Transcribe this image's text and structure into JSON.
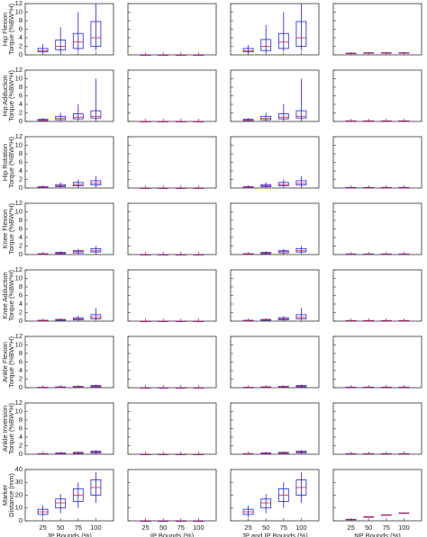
{
  "chart_data": {
    "type": "box",
    "box_color": "#2020e0",
    "median_color": "#e02020",
    "columns": [
      {
        "x_label": "JP Bounds (%)",
        "categories": [
          "25",
          "50",
          "75",
          "100"
        ]
      },
      {
        "x_label": "IP Bounds (%)",
        "categories": [
          "25",
          "50",
          "75",
          "100"
        ]
      },
      {
        "x_label": "JP and IP Bounds (%)",
        "categories": [
          "25",
          "50",
          "75",
          "100"
        ]
      },
      {
        "x_label": "NP Bounds (%)",
        "categories": [
          "25",
          "50",
          "75",
          "100"
        ]
      }
    ],
    "rows": [
      {
        "y_label": [
          "Hip Flexion",
          "Torque (%BW*H)"
        ],
        "ylim": [
          0,
          12
        ],
        "yticks": [
          0,
          2,
          4,
          6,
          8,
          10,
          12
        ],
        "boxes": [
          [
            [
              0.3,
              0.7,
              1,
              1.5,
              2.5
            ],
            [
              0.5,
              1.2,
              2,
              3.5,
              6.5
            ],
            [
              0.8,
              1.5,
              3,
              5,
              10
            ],
            [
              1,
              2,
              4,
              7.8,
              12
            ]
          ],
          [
            [
              0,
              0,
              0.01,
              0.02,
              0.05
            ],
            [
              0,
              0,
              0.01,
              0.02,
              0.05
            ],
            [
              0,
              0,
              0.01,
              0.02,
              0.05
            ],
            [
              0,
              0,
              0.01,
              0.02,
              0.05
            ]
          ],
          [
            [
              0.3,
              0.7,
              1,
              1.5,
              2.3
            ],
            [
              0.5,
              1,
              2,
              3.6,
              7
            ],
            [
              0.8,
              1.5,
              3,
              5,
              10
            ],
            [
              1,
              2,
              4,
              7.8,
              12
            ]
          ],
          [
            [
              0.2,
              0.3,
              0.35,
              0.4,
              0.5
            ],
            [
              0.3,
              0.4,
              0.45,
              0.5,
              0.6
            ],
            [
              0.3,
              0.4,
              0.45,
              0.5,
              0.6
            ],
            [
              0.3,
              0.4,
              0.45,
              0.5,
              0.6
            ]
          ]
        ]
      },
      {
        "y_label": [
          "Hip Adduction",
          "Torque (%BW*H)"
        ],
        "ylim": [
          0,
          12
        ],
        "yticks": [
          0,
          2,
          4,
          6,
          8,
          10,
          12
        ],
        "boxes": [
          [
            [
              0.1,
              0.2,
              0.3,
              0.5,
              0.8
            ],
            [
              0.2,
              0.4,
              0.7,
              1.2,
              2
            ],
            [
              0.3,
              0.6,
              1,
              1.8,
              4
            ],
            [
              0.3,
              0.8,
              1.2,
              2.5,
              10
            ]
          ],
          [
            [
              0,
              0,
              0.01,
              0.02,
              0.05
            ],
            [
              0,
              0,
              0.01,
              0.02,
              0.05
            ],
            [
              0,
              0,
              0.01,
              0.02,
              0.05
            ],
            [
              0,
              0,
              0.01,
              0.02,
              0.05
            ]
          ],
          [
            [
              0.1,
              0.2,
              0.3,
              0.5,
              0.8
            ],
            [
              0.2,
              0.4,
              0.7,
              1.2,
              2
            ],
            [
              0.3,
              0.6,
              1,
              1.8,
              4
            ],
            [
              0.3,
              0.8,
              1.2,
              2.5,
              10
            ]
          ],
          [
            [
              0.05,
              0.1,
              0.12,
              0.15,
              0.2
            ],
            [
              0.05,
              0.1,
              0.12,
              0.15,
              0.2
            ],
            [
              0.05,
              0.1,
              0.12,
              0.15,
              0.2
            ],
            [
              0.05,
              0.1,
              0.12,
              0.15,
              0.2
            ]
          ]
        ]
      },
      {
        "y_label": [
          "Hip Rotation",
          "Torque (%BW*H)"
        ],
        "ylim": [
          0,
          12
        ],
        "yticks": [
          0,
          2,
          4,
          6,
          8,
          10,
          12
        ],
        "boxes": [
          [
            [
              0.05,
              0.1,
              0.2,
              0.3,
              0.5
            ],
            [
              0.1,
              0.3,
              0.5,
              0.8,
              1.3
            ],
            [
              0.2,
              0.5,
              0.8,
              1.3,
              2
            ],
            [
              0.3,
              0.7,
              1.1,
              1.7,
              2.8
            ]
          ],
          [
            [
              0,
              0,
              0.01,
              0.02,
              0.05
            ],
            [
              0,
              0,
              0.01,
              0.02,
              0.05
            ],
            [
              0,
              0,
              0.01,
              0.02,
              0.05
            ],
            [
              0,
              0,
              0.01,
              0.02,
              0.05
            ]
          ],
          [
            [
              0.05,
              0.1,
              0.2,
              0.3,
              0.5
            ],
            [
              0.1,
              0.3,
              0.5,
              0.8,
              1.3
            ],
            [
              0.2,
              0.5,
              0.8,
              1.3,
              2
            ],
            [
              0.3,
              0.7,
              1.1,
              1.7,
              2.8
            ]
          ],
          [
            [
              0.05,
              0.1,
              0.12,
              0.15,
              0.2
            ],
            [
              0.05,
              0.1,
              0.12,
              0.15,
              0.2
            ],
            [
              0.05,
              0.1,
              0.12,
              0.15,
              0.2
            ],
            [
              0.05,
              0.1,
              0.12,
              0.15,
              0.2
            ]
          ]
        ]
      },
      {
        "y_label": [
          "Knee Flexion",
          "Torque (%BW*H)"
        ],
        "ylim": [
          0,
          12
        ],
        "yticks": [
          0,
          2,
          4,
          6,
          8,
          10,
          12
        ],
        "boxes": [
          [
            [
              0.05,
              0.1,
              0.15,
              0.2,
              0.3
            ],
            [
              0.1,
              0.2,
              0.35,
              0.5,
              0.8
            ],
            [
              0.2,
              0.4,
              0.7,
              0.9,
              1.3
            ],
            [
              0.3,
              0.6,
              0.9,
              1.4,
              2
            ]
          ],
          [
            [
              0,
              0,
              0.01,
              0.02,
              0.05
            ],
            [
              0,
              0,
              0.01,
              0.02,
              0.05
            ],
            [
              0,
              0,
              0.01,
              0.02,
              0.05
            ],
            [
              0,
              0,
              0.01,
              0.02,
              0.05
            ]
          ],
          [
            [
              0.05,
              0.1,
              0.15,
              0.2,
              0.3
            ],
            [
              0.1,
              0.2,
              0.35,
              0.5,
              0.8
            ],
            [
              0.2,
              0.4,
              0.7,
              0.9,
              1.3
            ],
            [
              0.3,
              0.6,
              0.9,
              1.4,
              2
            ]
          ],
          [
            [
              0.05,
              0.1,
              0.12,
              0.15,
              0.2
            ],
            [
              0.05,
              0.1,
              0.12,
              0.15,
              0.2
            ],
            [
              0.05,
              0.1,
              0.12,
              0.15,
              0.2
            ],
            [
              0.05,
              0.1,
              0.12,
              0.15,
              0.2
            ]
          ]
        ]
      },
      {
        "y_label": [
          "Knee Adduction",
          "Torque (%BW*H)"
        ],
        "ylim": [
          0,
          12
        ],
        "yticks": [
          0,
          2,
          4,
          6,
          8,
          10,
          12
        ],
        "boxes": [
          [
            [
              0.05,
              0.1,
              0.15,
              0.2,
              0.3
            ],
            [
              0.1,
              0.2,
              0.3,
              0.4,
              0.6
            ],
            [
              0.2,
              0.3,
              0.5,
              0.8,
              1.2
            ],
            [
              0.3,
              0.5,
              0.9,
              1.5,
              3
            ]
          ],
          [
            [
              0,
              0,
              0.01,
              0.02,
              0.05
            ],
            [
              0,
              0,
              0.01,
              0.02,
              0.05
            ],
            [
              0,
              0,
              0.01,
              0.02,
              0.05
            ],
            [
              0,
              0,
              0.01,
              0.02,
              0.05
            ]
          ],
          [
            [
              0.05,
              0.1,
              0.15,
              0.2,
              0.3
            ],
            [
              0.1,
              0.2,
              0.3,
              0.4,
              0.6
            ],
            [
              0.2,
              0.3,
              0.5,
              0.8,
              1.2
            ],
            [
              0.3,
              0.5,
              0.9,
              1.5,
              3
            ]
          ],
          [
            [
              0.05,
              0.1,
              0.12,
              0.15,
              0.2
            ],
            [
              0.05,
              0.1,
              0.12,
              0.15,
              0.2
            ],
            [
              0.05,
              0.1,
              0.12,
              0.15,
              0.2
            ],
            [
              0.05,
              0.1,
              0.12,
              0.15,
              0.2
            ]
          ]
        ]
      },
      {
        "y_label": [
          "Ankle Flexion",
          "Torque (%BW*H)"
        ],
        "ylim": [
          0,
          12
        ],
        "yticks": [
          0,
          2,
          4,
          6,
          8,
          10,
          12
        ],
        "boxes": [
          [
            [
              0,
              0.05,
              0.08,
              0.1,
              0.15
            ],
            [
              0.05,
              0.1,
              0.15,
              0.2,
              0.3
            ],
            [
              0.1,
              0.15,
              0.2,
              0.3,
              0.4
            ],
            [
              0.15,
              0.2,
              0.35,
              0.5,
              0.7
            ]
          ],
          [
            [
              0,
              0,
              0.01,
              0.02,
              0.05
            ],
            [
              0,
              0,
              0.01,
              0.02,
              0.05
            ],
            [
              0,
              0,
              0.01,
              0.02,
              0.05
            ],
            [
              0,
              0,
              0.01,
              0.02,
              0.05
            ]
          ],
          [
            [
              0,
              0.05,
              0.08,
              0.1,
              0.15
            ],
            [
              0.05,
              0.1,
              0.15,
              0.2,
              0.3
            ],
            [
              0.1,
              0.15,
              0.2,
              0.3,
              0.4
            ],
            [
              0.15,
              0.2,
              0.35,
              0.5,
              0.7
            ]
          ],
          [
            [
              0.05,
              0.1,
              0.12,
              0.15,
              0.2
            ],
            [
              0.05,
              0.1,
              0.12,
              0.15,
              0.2
            ],
            [
              0.05,
              0.1,
              0.12,
              0.15,
              0.2
            ],
            [
              0.05,
              0.1,
              0.12,
              0.15,
              0.2
            ]
          ]
        ]
      },
      {
        "y_label": [
          "Ankle Inversion",
          "Torque (%BW*H)"
        ],
        "ylim": [
          0,
          12
        ],
        "yticks": [
          0,
          2,
          4,
          6,
          8,
          10,
          12
        ],
        "boxes": [
          [
            [
              0,
              0.05,
              0.1,
              0.15,
              0.2
            ],
            [
              0.05,
              0.1,
              0.2,
              0.3,
              0.4
            ],
            [
              0.1,
              0.2,
              0.3,
              0.45,
              0.6
            ],
            [
              0.2,
              0.3,
              0.5,
              0.7,
              1
            ]
          ],
          [
            [
              0,
              0,
              0.01,
              0.02,
              0.05
            ],
            [
              0,
              0,
              0.01,
              0.02,
              0.05
            ],
            [
              0,
              0,
              0.01,
              0.02,
              0.05
            ],
            [
              0,
              0,
              0.01,
              0.02,
              0.05
            ]
          ],
          [
            [
              0,
              0.05,
              0.1,
              0.15,
              0.2
            ],
            [
              0.05,
              0.1,
              0.2,
              0.3,
              0.4
            ],
            [
              0.1,
              0.2,
              0.3,
              0.45,
              0.6
            ],
            [
              0.2,
              0.3,
              0.5,
              0.7,
              1
            ]
          ],
          [
            [
              0.05,
              0.1,
              0.12,
              0.15,
              0.2
            ],
            [
              0.05,
              0.1,
              0.12,
              0.15,
              0.2
            ],
            [
              0.05,
              0.1,
              0.12,
              0.15,
              0.2
            ],
            [
              0.05,
              0.1,
              0.12,
              0.15,
              0.2
            ]
          ]
        ]
      },
      {
        "y_label": [
          "Marker",
          "Distance (mm)"
        ],
        "ylim": [
          0,
          40
        ],
        "yticks": [
          0,
          10,
          20,
          30,
          40
        ],
        "boxes": [
          [
            [
              3,
              5,
              7,
              9,
              12
            ],
            [
              6,
              10,
              14,
              17,
              21
            ],
            [
              10,
              15,
              20,
              25,
              30
            ],
            [
              14,
              20,
              26,
              32,
              38
            ]
          ],
          [
            [
              0,
              0,
              0,
              0,
              0.2
            ],
            [
              0,
              0,
              0,
              0,
              0.2
            ],
            [
              0,
              0,
              0,
              0,
              0.2
            ],
            [
              0,
              0,
              0,
              0,
              0.2
            ]
          ],
          [
            [
              3,
              5,
              7,
              9,
              12
            ],
            [
              6,
              10,
              14,
              17,
              21
            ],
            [
              10,
              15,
              20,
              25,
              30
            ],
            [
              14,
              20,
              26,
              32,
              38
            ]
          ],
          [
            [
              0.5,
              0.8,
              1,
              1.2,
              1.5
            ],
            [
              2.5,
              2.8,
              3,
              3.2,
              3.5
            ],
            [
              4,
              4.3,
              4.5,
              4.7,
              5
            ],
            [
              5.5,
              5.8,
              6,
              6.2,
              6.5
            ]
          ]
        ]
      }
    ]
  }
}
